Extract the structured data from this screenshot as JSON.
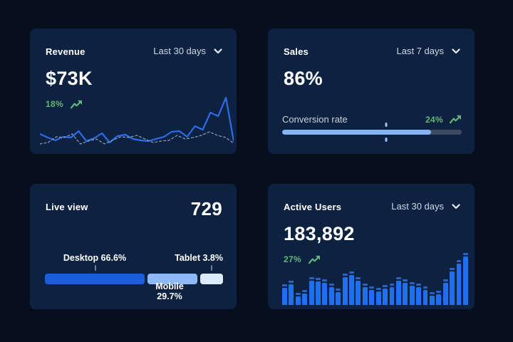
{
  "theme": {
    "page_bg": "#070f1f",
    "card_bg": "#0c2240",
    "accent_green": "#64b578",
    "line_blue": "#2d6be8",
    "dashed_gray": "#8fa0b5",
    "bar_blue": "#1e6ff2",
    "bar_cap_blue": "#2b63c4",
    "progress_fill": "#85b4f2",
    "progress_track": "#3d4a61"
  },
  "cards": {
    "revenue": {
      "title": "Revenue",
      "period": "Last 30 days",
      "value": "$73K",
      "delta": "18%",
      "trend_icon": "trend-up-icon",
      "chart_data": {
        "type": "line",
        "title": "Revenue last 30 days (sparkline, axes hidden)",
        "ylim": [
          0,
          70
        ],
        "grid": false,
        "series": [
          {
            "name": "current",
            "style": "solid",
            "color": "#2d6be8",
            "values": [
              15,
              10,
              6,
              11,
              10,
              19,
              5,
              9,
              16,
              3,
              12,
              14,
              8,
              6,
              5,
              8,
              11,
              18,
              19,
              11,
              26,
              21,
              45,
              40,
              66,
              5
            ]
          },
          {
            "name": "previous",
            "style": "dashed",
            "color": "#8fa0b5",
            "values": [
              1,
              3,
              11,
              10,
              15,
              1,
              5,
              8,
              1,
              6,
              11,
              10,
              13,
              8,
              3,
              5,
              6,
              13,
              8,
              10,
              13,
              18,
              13,
              10,
              2
            ]
          }
        ]
      }
    },
    "sales": {
      "title": "Sales",
      "period": "Last 7 days",
      "value": "86%",
      "metric_label": "Conversion rate",
      "delta": "24%",
      "trend_icon": "trend-up-icon",
      "chart_data": {
        "type": "progress",
        "title": "Conversion rate progress bar",
        "fill_pct": 83,
        "marker_pct": 58
      }
    },
    "live_view": {
      "title": "Live view",
      "value": "729",
      "chart_data": {
        "type": "stacked-bar",
        "title": "Live view device split",
        "segments": [
          {
            "label": "Desktop",
            "pct": 66.6,
            "display": "Desktop 66.6%",
            "color": "#1c5ed9",
            "layout_pct": 56,
            "label_pos": "top"
          },
          {
            "label": "Mobile",
            "pct": 29.7,
            "display": "Mobile 29.7%",
            "color": "#8db9f7",
            "layout_pct": 28,
            "label_pos": "bottom"
          },
          {
            "label": "Tablet",
            "pct": 3.8,
            "display": "Tablet 3.8%",
            "color": "#ddeafd",
            "layout_pct": 13,
            "label_pos": "top"
          }
        ]
      }
    },
    "active_users": {
      "title": "Active Users",
      "period": "Last 30 days",
      "value": "183,892",
      "delta": "27%",
      "trend_icon": "trend-up-icon",
      "chart_data": {
        "type": "bar",
        "title": "Active users last 30 days (relative bar heights, % of max)",
        "ylim": [
          0,
          100
        ],
        "values": [
          40,
          46,
          23,
          29,
          54,
          52,
          49,
          41,
          31,
          60,
          64,
          53,
          41,
          35,
          33,
          38,
          41,
          54,
          49,
          44,
          41,
          35,
          25,
          28,
          49,
          71,
          86,
          100
        ]
      }
    }
  }
}
